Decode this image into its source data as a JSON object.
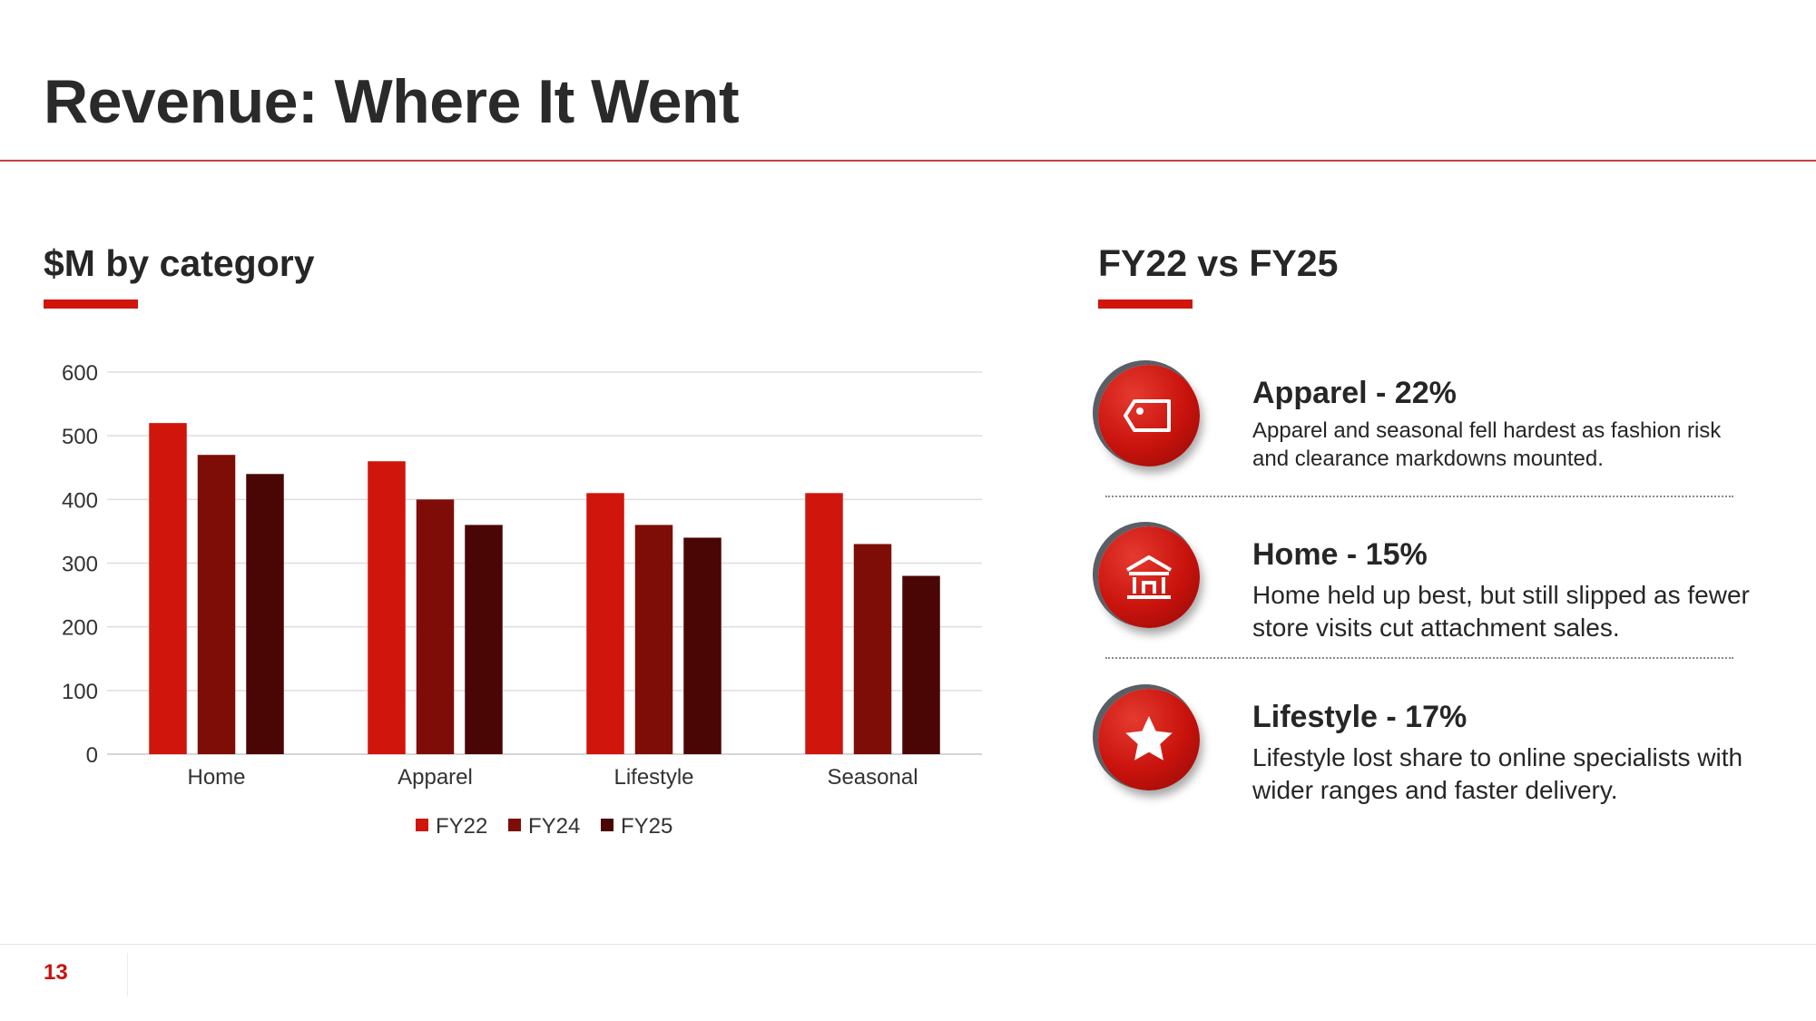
{
  "slide": {
    "title": "Revenue: Where It Went",
    "page_number": "13"
  },
  "left_section": {
    "heading": "$M by category"
  },
  "right_section": {
    "heading": "FY22 vs FY25",
    "items": [
      {
        "title": "Apparel - 22%",
        "description": "Apparel and seasonal fell hardest as fashion risk and clearance markdowns mounted.",
        "icon": "price-tag-icon"
      },
      {
        "title": "Home - 15%",
        "description": "Home held up best, but still slipped as fewer store visits cut attachment sales.",
        "icon": "house-icon"
      },
      {
        "title": "Lifestyle - 17%",
        "description": "Lifestyle lost share to online specialists with wider ranges and faster delivery.",
        "icon": "star-icon"
      }
    ]
  },
  "colors": {
    "accent": "#d0150d",
    "fy22": "#d0150d",
    "fy24": "#7e0d07",
    "fy25": "#4a0604",
    "title_rule": "#c9413f"
  },
  "chart_data": {
    "type": "bar",
    "categories": [
      "Home",
      "Apparel",
      "Lifestyle",
      "Seasonal"
    ],
    "series": [
      {
        "name": "FY22",
        "values": [
          520,
          460,
          410,
          410
        ],
        "color": "#d0150d"
      },
      {
        "name": "FY24",
        "values": [
          470,
          400,
          360,
          330
        ],
        "color": "#7e0d07"
      },
      {
        "name": "FY25",
        "values": [
          440,
          360,
          340,
          280
        ],
        "color": "#4a0604"
      }
    ],
    "ylim": [
      0,
      600
    ],
    "yticks": [
      "0",
      "100",
      "200",
      "300",
      "400",
      "500",
      "600"
    ],
    "grid": true,
    "legend": "bottom"
  }
}
